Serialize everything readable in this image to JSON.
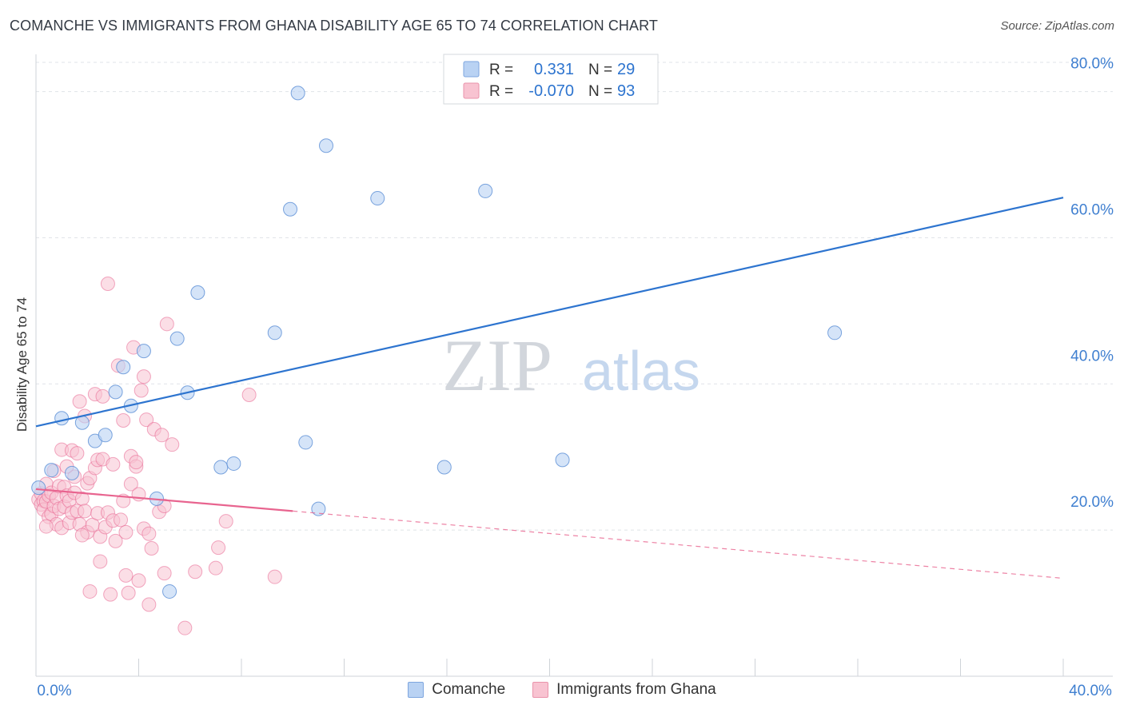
{
  "header": {
    "title": "COMANCHE VS IMMIGRANTS FROM GHANA DISABILITY AGE 65 TO 74 CORRELATION CHART",
    "source": "Source: ZipAtlas.com"
  },
  "colors": {
    "blue": "#2d74cf",
    "blue_fill": "#b9d2f3",
    "pink": "#e8648f",
    "pink_fill": "#f8c3d1",
    "grid": "#dfe3e8",
    "tick_label": "#3f7fd0"
  },
  "watermark": {
    "part1": "ZIP",
    "part2": "atlas"
  },
  "legend": {
    "rows": [
      {
        "r_label": "R = ",
        "r_value": "0.331",
        "n_label": "N = ",
        "n_value": "29"
      },
      {
        "r_label": "R = ",
        "r_value": "-0.070",
        "n_label": "N = ",
        "n_value": "93"
      }
    ]
  },
  "chart_data": {
    "type": "scatter",
    "title": "COMANCHE VS IMMIGRANTS FROM GHANA DISABILITY AGE 65 TO 74 CORRELATION CHART",
    "xlabel": "",
    "ylabel": "Disability Age 65 to 74",
    "xlim": [
      0,
      40
    ],
    "ylim": [
      0,
      84
    ],
    "x_tick_labels": [
      "0.0%",
      "40.0%"
    ],
    "y_ticks": [
      20,
      40,
      60,
      80
    ],
    "y_tick_labels": [
      "20.0%",
      "40.0%",
      "60.0%",
      "80.0%"
    ],
    "grid": true,
    "legend_position": "bottom",
    "series": [
      {
        "name": "Comanche",
        "r": 0.331,
        "n": 29,
        "trend": {
          "x_start": 0,
          "y_start": 34.2,
          "x_end": 40,
          "y_end": 65.5
        },
        "points": [
          [
            0.1,
            25.8
          ],
          [
            0.6,
            28.2
          ],
          [
            1.0,
            35.3
          ],
          [
            1.4,
            27.8
          ],
          [
            1.8,
            34.7
          ],
          [
            2.3,
            32.2
          ],
          [
            2.7,
            33.0
          ],
          [
            3.1,
            38.9
          ],
          [
            3.4,
            42.3
          ],
          [
            3.7,
            37.0
          ],
          [
            4.2,
            44.5
          ],
          [
            4.7,
            24.3
          ],
          [
            5.2,
            11.6
          ],
          [
            5.5,
            46.2
          ],
          [
            5.9,
            38.8
          ],
          [
            6.3,
            52.5
          ],
          [
            7.2,
            28.6
          ],
          [
            7.7,
            29.1
          ],
          [
            9.3,
            47.0
          ],
          [
            9.9,
            63.9
          ],
          [
            10.2,
            79.8
          ],
          [
            10.5,
            32.0
          ],
          [
            11.0,
            22.9
          ],
          [
            11.3,
            72.6
          ],
          [
            13.3,
            65.4
          ],
          [
            15.9,
            28.6
          ],
          [
            17.5,
            66.4
          ],
          [
            20.5,
            29.6
          ],
          [
            31.1,
            47.0
          ]
        ]
      },
      {
        "name": "Immigrants from Ghana",
        "r": -0.07,
        "n": 93,
        "trend": {
          "x_start": 0,
          "y_start": 25.6,
          "x_end": 10,
          "y_end": 22.6
        },
        "trend_dashed": {
          "x_start": 10,
          "y_start": 22.6,
          "x_end": 40,
          "y_end": 13.4
        },
        "points": [
          [
            0.1,
            24.2
          ],
          [
            0.2,
            23.5
          ],
          [
            0.2,
            25.0
          ],
          [
            0.3,
            24.0
          ],
          [
            0.3,
            22.8
          ],
          [
            0.4,
            23.9
          ],
          [
            0.4,
            26.3
          ],
          [
            0.5,
            21.8
          ],
          [
            0.5,
            24.7
          ],
          [
            0.6,
            22.2
          ],
          [
            0.6,
            25.1
          ],
          [
            0.7,
            23.3
          ],
          [
            0.7,
            28.1
          ],
          [
            0.8,
            20.8
          ],
          [
            0.8,
            24.4
          ],
          [
            0.9,
            22.9
          ],
          [
            0.9,
            26.0
          ],
          [
            1.0,
            31.0
          ],
          [
            1.0,
            20.3
          ],
          [
            1.1,
            23.2
          ],
          [
            1.1,
            25.9
          ],
          [
            1.2,
            24.7
          ],
          [
            1.3,
            21.0
          ],
          [
            1.3,
            24.0
          ],
          [
            1.4,
            30.9
          ],
          [
            1.4,
            22.4
          ],
          [
            1.5,
            27.3
          ],
          [
            1.5,
            25.1
          ],
          [
            1.6,
            30.5
          ],
          [
            1.6,
            22.6
          ],
          [
            1.7,
            37.6
          ],
          [
            1.7,
            20.8
          ],
          [
            1.8,
            24.3
          ],
          [
            1.9,
            35.6
          ],
          [
            1.9,
            22.6
          ],
          [
            2.0,
            26.4
          ],
          [
            2.0,
            19.7
          ],
          [
            2.1,
            11.6
          ],
          [
            2.1,
            27.1
          ],
          [
            2.2,
            20.7
          ],
          [
            2.3,
            38.6
          ],
          [
            2.3,
            28.5
          ],
          [
            2.4,
            29.6
          ],
          [
            2.4,
            22.3
          ],
          [
            2.5,
            15.7
          ],
          [
            2.5,
            19.1
          ],
          [
            2.6,
            38.3
          ],
          [
            2.6,
            29.7
          ],
          [
            2.7,
            20.4
          ],
          [
            2.8,
            53.7
          ],
          [
            2.8,
            22.4
          ],
          [
            2.9,
            11.2
          ],
          [
            3.0,
            21.3
          ],
          [
            3.0,
            29.0
          ],
          [
            3.1,
            18.5
          ],
          [
            3.2,
            42.5
          ],
          [
            3.3,
            21.4
          ],
          [
            3.4,
            35.0
          ],
          [
            3.4,
            24.0
          ],
          [
            3.5,
            19.7
          ],
          [
            3.5,
            13.8
          ],
          [
            3.6,
            11.4
          ],
          [
            3.7,
            30.1
          ],
          [
            3.7,
            26.3
          ],
          [
            3.8,
            45.0
          ],
          [
            3.9,
            28.7
          ],
          [
            4.0,
            24.9
          ],
          [
            4.0,
            13.1
          ],
          [
            4.1,
            39.1
          ],
          [
            4.2,
            41.0
          ],
          [
            4.2,
            20.2
          ],
          [
            4.3,
            35.1
          ],
          [
            4.4,
            19.5
          ],
          [
            4.4,
            9.8
          ],
          [
            4.5,
            17.5
          ],
          [
            4.6,
            33.8
          ],
          [
            4.8,
            22.5
          ],
          [
            4.9,
            33.0
          ],
          [
            5.0,
            23.3
          ],
          [
            5.0,
            14.1
          ],
          [
            5.1,
            48.2
          ],
          [
            5.3,
            31.7
          ],
          [
            5.8,
            6.6
          ],
          [
            6.2,
            14.3
          ],
          [
            7.0,
            14.8
          ],
          [
            7.1,
            17.6
          ],
          [
            7.4,
            21.2
          ],
          [
            8.3,
            38.5
          ],
          [
            9.3,
            13.6
          ],
          [
            0.4,
            20.5
          ],
          [
            1.2,
            28.7
          ],
          [
            1.8,
            19.3
          ],
          [
            3.9,
            29.3
          ]
        ]
      }
    ]
  }
}
